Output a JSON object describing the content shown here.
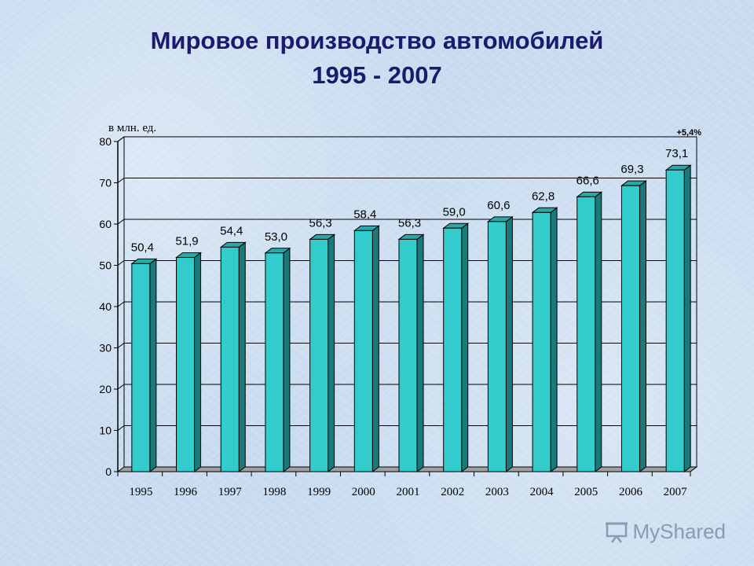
{
  "title": {
    "line1": "Мировое производство автомобилей",
    "line2": "1995 - 2007"
  },
  "logo": {
    "text": "MyShared"
  },
  "chart_data": {
    "type": "bar",
    "unit_label": "в млн. ед.",
    "growth_annotation": "+5,4%",
    "categories": [
      "1995",
      "1996",
      "1997",
      "1998",
      "1999",
      "2000",
      "2001",
      "2002",
      "2003",
      "2004",
      "2005",
      "2006",
      "2007"
    ],
    "values": [
      50.4,
      51.9,
      54.4,
      53.0,
      56.3,
      58.4,
      56.3,
      59.0,
      60.6,
      62.8,
      66.6,
      69.3,
      73.1
    ],
    "value_labels": [
      "50,4",
      "51,9",
      "54,4",
      "53,0",
      "56,3",
      "58,4",
      "56,3",
      "59,0",
      "60,6",
      "62,8",
      "66,6",
      "69,3",
      "73,1"
    ],
    "ylim": [
      0,
      80
    ],
    "yticks": [
      0,
      10,
      20,
      30,
      40,
      50,
      60,
      70,
      80
    ],
    "grid": true,
    "bar_color": "#33cccc"
  }
}
